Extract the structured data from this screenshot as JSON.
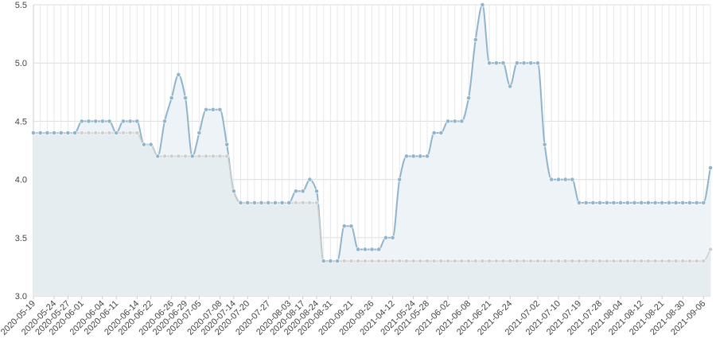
{
  "chart_data": {
    "type": "area",
    "title": "",
    "xlabel": "",
    "ylabel": "",
    "ylim": [
      3.0,
      5.5
    ],
    "yticks": [
      "3.0",
      "3.5",
      "4.0",
      "4.5",
      "5.0",
      "5.5"
    ],
    "grid": true,
    "legend": "none",
    "x": [
      "2020-05-19",
      "2020-05-20",
      "2020-05-22",
      "2020-05-24",
      "2020-05-26",
      "2020-05-27",
      "2020-05-30",
      "2020-06-01",
      "2020-06-02",
      "2020-06-03",
      "2020-06-04",
      "2020-06-06",
      "2020-06-11",
      "2020-06-12",
      "2020-06-13",
      "2020-06-14",
      "2020-06-18",
      "2020-06-22",
      "2020-06-23",
      "2020-06-25",
      "2020-06-26",
      "2020-06-27",
      "2020-06-29",
      "2020-07-01",
      "2020-07-05",
      "2020-07-06",
      "2020-07-07",
      "2020-07-08",
      "2020-07-10",
      "2020-07-14",
      "2020-07-17",
      "2020-07-20",
      "2020-07-22",
      "2020-07-25",
      "2020-07-27",
      "2020-07-30",
      "2020-08-01",
      "2020-08-03",
      "2020-08-10",
      "2020-08-17",
      "2020-08-20",
      "2020-08-24",
      "2020-08-25",
      "2020-08-31",
      "2020-09-05",
      "2020-09-10",
      "2020-09-21",
      "2020-09-23",
      "2020-09-24",
      "2020-09-26",
      "2020-10-10",
      "2021-03-20",
      "2021-04-12",
      "2021-04-15",
      "2021-05-20",
      "2021-05-24",
      "2021-05-26",
      "2021-05-28",
      "2021-05-29",
      "2021-05-31",
      "2021-06-02",
      "2021-06-04",
      "2021-06-06",
      "2021-06-08",
      "2021-06-11",
      "2021-06-16",
      "2021-06-21",
      "2021-06-22",
      "2021-06-23",
      "2021-06-24",
      "2021-06-25",
      "2021-06-28",
      "2021-06-29",
      "2021-07-02",
      "2021-07-05",
      "2021-07-07",
      "2021-07-10",
      "2021-07-13",
      "2021-07-16",
      "2021-07-19",
      "2021-07-20",
      "2021-07-21",
      "2021-07-28",
      "2021-07-30",
      "2021-08-02",
      "2021-08-04",
      "2021-08-06",
      "2021-08-09",
      "2021-08-12",
      "2021-08-14",
      "2021-08-16",
      "2021-08-21",
      "2021-08-24",
      "2021-08-27",
      "2021-08-30",
      "2021-09-02",
      "2021-09-04",
      "2021-09-06",
      "2021-09-08"
    ],
    "xtick_labels": [
      "2020-05-19",
      "2020-05-24",
      "2020-05-27",
      "2020-06-01",
      "2020-06-04",
      "2020-06-11",
      "2020-06-14",
      "2020-06-22",
      "2020-06-26",
      "2020-06-29",
      "2020-07-05",
      "2020-07-08",
      "2020-07-14",
      "2020-07-20",
      "2020-07-27",
      "2020-08-03",
      "2020-08-17",
      "2020-08-24",
      "2020-08-31",
      "2020-09-21",
      "2020-09-26",
      "2021-04-12",
      "2021-05-24",
      "2021-05-28",
      "2021-06-02",
      "2021-06-08",
      "2021-06-21",
      "2021-06-24",
      "2021-07-02",
      "2021-07-10",
      "2021-07-19",
      "2021-07-28",
      "2021-08-04",
      "2021-08-12",
      "2021-08-21",
      "2021-08-30",
      "2021-09-06"
    ],
    "series": [
      {
        "color": "#8fb4cb",
        "fill": "#eef3f7",
        "values": [
          4.4,
          4.4,
          4.4,
          4.4,
          4.4,
          4.4,
          4.4,
          4.5,
          4.5,
          4.5,
          4.5,
          4.5,
          4.4,
          4.5,
          4.5,
          4.5,
          4.3,
          4.3,
          4.2,
          4.5,
          4.7,
          4.9,
          4.7,
          4.2,
          4.4,
          4.6,
          4.6,
          4.6,
          4.3,
          3.9,
          3.8,
          3.8,
          3.8,
          3.8,
          3.8,
          3.8,
          3.8,
          3.8,
          3.9,
          3.9,
          4.0,
          3.9,
          3.3,
          3.3,
          3.3,
          3.6,
          3.6,
          3.4,
          3.4,
          3.4,
          3.4,
          3.5,
          3.5,
          4.0,
          4.2,
          4.2,
          4.2,
          4.2,
          4.4,
          4.4,
          4.5,
          4.5,
          4.5,
          4.7,
          5.2,
          5.5,
          5.0,
          5.0,
          5.0,
          4.8,
          5.0,
          5.0,
          5.0,
          5.0,
          4.3,
          4.0,
          4.0,
          4.0,
          4.0,
          3.8,
          3.8,
          3.8,
          3.8,
          3.8,
          3.8,
          3.8,
          3.8,
          3.8,
          3.8,
          3.8,
          3.8,
          3.8,
          3.8,
          3.8,
          3.8,
          3.8,
          3.8,
          3.8,
          4.1
        ]
      },
      {
        "color": "#cfcfcf",
        "fill": "#e4ebef",
        "values": [
          4.4,
          4.4,
          4.4,
          4.4,
          4.4,
          4.4,
          4.4,
          4.4,
          4.4,
          4.4,
          4.4,
          4.4,
          4.4,
          4.4,
          4.4,
          4.4,
          4.3,
          4.3,
          4.2,
          4.2,
          4.2,
          4.2,
          4.2,
          4.2,
          4.2,
          4.2,
          4.2,
          4.2,
          4.2,
          3.9,
          3.8,
          3.8,
          3.8,
          3.8,
          3.8,
          3.8,
          3.8,
          3.8,
          3.8,
          3.8,
          3.8,
          3.8,
          3.3,
          3.3,
          3.3,
          3.3,
          3.3,
          3.3,
          3.3,
          3.3,
          3.3,
          3.3,
          3.3,
          3.3,
          3.3,
          3.3,
          3.3,
          3.3,
          3.3,
          3.3,
          3.3,
          3.3,
          3.3,
          3.3,
          3.3,
          3.3,
          3.3,
          3.3,
          3.3,
          3.3,
          3.3,
          3.3,
          3.3,
          3.3,
          3.3,
          3.3,
          3.3,
          3.3,
          3.3,
          3.3,
          3.3,
          3.3,
          3.3,
          3.3,
          3.3,
          3.3,
          3.3,
          3.3,
          3.3,
          3.3,
          3.3,
          3.3,
          3.3,
          3.3,
          3.3,
          3.3,
          3.3,
          3.3,
          3.4
        ]
      }
    ]
  }
}
